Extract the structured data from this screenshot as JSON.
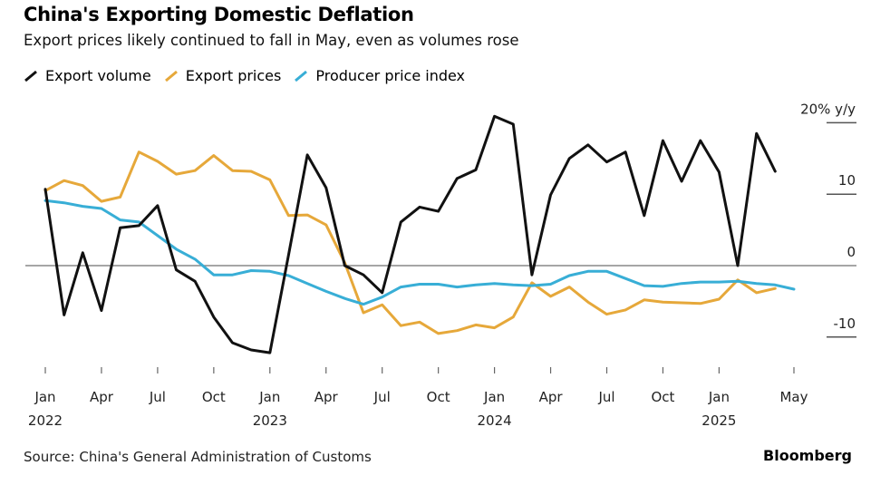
{
  "title": "China's Exporting Domestic Deflation",
  "subtitle": "Export prices likely continued to fall in May, even as volumes rose",
  "source": "Source: China's General Administration of Customs",
  "brand": "Bloomberg",
  "colors": {
    "export_volume": "#111111",
    "export_prices": "#e6a83a",
    "ppi": "#38aed6",
    "zero_line": "#888888"
  },
  "chart_data": {
    "type": "line",
    "title": "China's Exporting Domestic Deflation",
    "subtitle": "Export prices likely continued to fall in May, even as volumes rose",
    "ylabel": "20% y/y",
    "ylim": [
      -15,
      20
    ],
    "yticks": [
      {
        "value": 20,
        "label": "20% y/y"
      },
      {
        "value": 10,
        "label": "10"
      },
      {
        "value": 0,
        "label": "0"
      },
      {
        "value": -10,
        "label": "-10"
      }
    ],
    "x_start": "2022-01",
    "x_end": "2025-05",
    "xticks": [
      {
        "month": "2022-01",
        "label": "Jan",
        "year": "2022"
      },
      {
        "month": "2022-04",
        "label": "Apr",
        "year": ""
      },
      {
        "month": "2022-07",
        "label": "Jul",
        "year": ""
      },
      {
        "month": "2022-10",
        "label": "Oct",
        "year": ""
      },
      {
        "month": "2023-01",
        "label": "Jan",
        "year": "2023"
      },
      {
        "month": "2023-04",
        "label": "Apr",
        "year": ""
      },
      {
        "month": "2023-07",
        "label": "Jul",
        "year": ""
      },
      {
        "month": "2023-10",
        "label": "Oct",
        "year": ""
      },
      {
        "month": "2024-01",
        "label": "Jan",
        "year": "2024"
      },
      {
        "month": "2024-04",
        "label": "Apr",
        "year": ""
      },
      {
        "month": "2024-07",
        "label": "Jul",
        "year": ""
      },
      {
        "month": "2024-10",
        "label": "Oct",
        "year": ""
      },
      {
        "month": "2025-01",
        "label": "Jan",
        "year": "2025"
      },
      {
        "month": "2025-05",
        "label": "May",
        "year": ""
      }
    ],
    "grid": false,
    "legend_position": "top-left",
    "series": [
      {
        "name": "Export volume",
        "color": "#111111",
        "start": "2022-01",
        "values": [
          10.7,
          -6.9,
          1.8,
          -6.3,
          5.3,
          5.6,
          8.4,
          -0.6,
          -2.2,
          -7.2,
          -10.8,
          -11.8,
          -12.2,
          1.5,
          15.5,
          10.9,
          0,
          -1.3,
          -3.8,
          6.1,
          8.2,
          7.6,
          12.2,
          13.4,
          20.9,
          19.8,
          -1.3,
          9.9,
          15,
          16.9,
          14.5,
          15.9,
          7,
          17.5,
          11.8,
          17.5,
          13.1,
          0,
          18.5,
          13.2
        ]
      },
      {
        "name": "Export prices",
        "color": "#e6a83a",
        "start": "2022-01",
        "values": [
          10.5,
          11.9,
          11.2,
          9,
          9.6,
          15.9,
          14.6,
          12.8,
          13.3,
          15.4,
          13.3,
          13.2,
          12,
          7,
          7.1,
          5.7,
          0.4,
          -6.6,
          -5.5,
          -8.4,
          -7.9,
          -9.5,
          -9.1,
          -8.3,
          -8.7,
          -7.2,
          -2.4,
          -4.3,
          -3,
          -5.1,
          -6.8,
          -6.2,
          -4.8,
          -5.1,
          -5.2,
          -5.3,
          -4.7,
          -2,
          -3.8,
          -3.2
        ]
      },
      {
        "name": "Producer price index",
        "color": "#38aed6",
        "start": "2022-01",
        "values": [
          9.1,
          8.8,
          8.3,
          8,
          6.4,
          6.1,
          4.2,
          2.3,
          0.9,
          -1.3,
          -1.3,
          -0.7,
          -0.8,
          -1.4,
          -2.5,
          -3.6,
          -4.6,
          -5.4,
          -4.4,
          -3.0,
          -2.6,
          -2.6,
          -3.0,
          -2.7,
          -2.5,
          -2.7,
          -2.8,
          -2.6,
          -1.4,
          -0.8,
          -0.8,
          -1.8,
          -2.8,
          -2.9,
          -2.5,
          -2.3,
          -2.3,
          -2.2,
          -2.5,
          -2.7,
          -3.3
        ]
      }
    ]
  }
}
